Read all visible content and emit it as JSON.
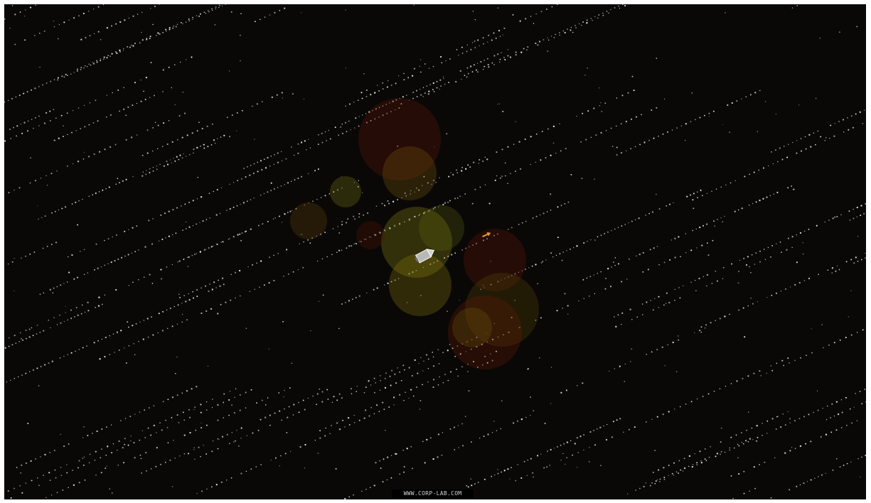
{
  "game": {
    "credit": "WWW.CORP-LAB.COM",
    "colors": {
      "background": "#0a0807",
      "star": "#e8e8e8",
      "glow_yellow": "#8a7a10",
      "glow_red": "#6a1608",
      "ship": "#b8b8b8",
      "projectile": "#f0a020"
    }
  },
  "icons": {
    "player_ship": "player-ship-icon",
    "projectile": "projectile-icon"
  }
}
